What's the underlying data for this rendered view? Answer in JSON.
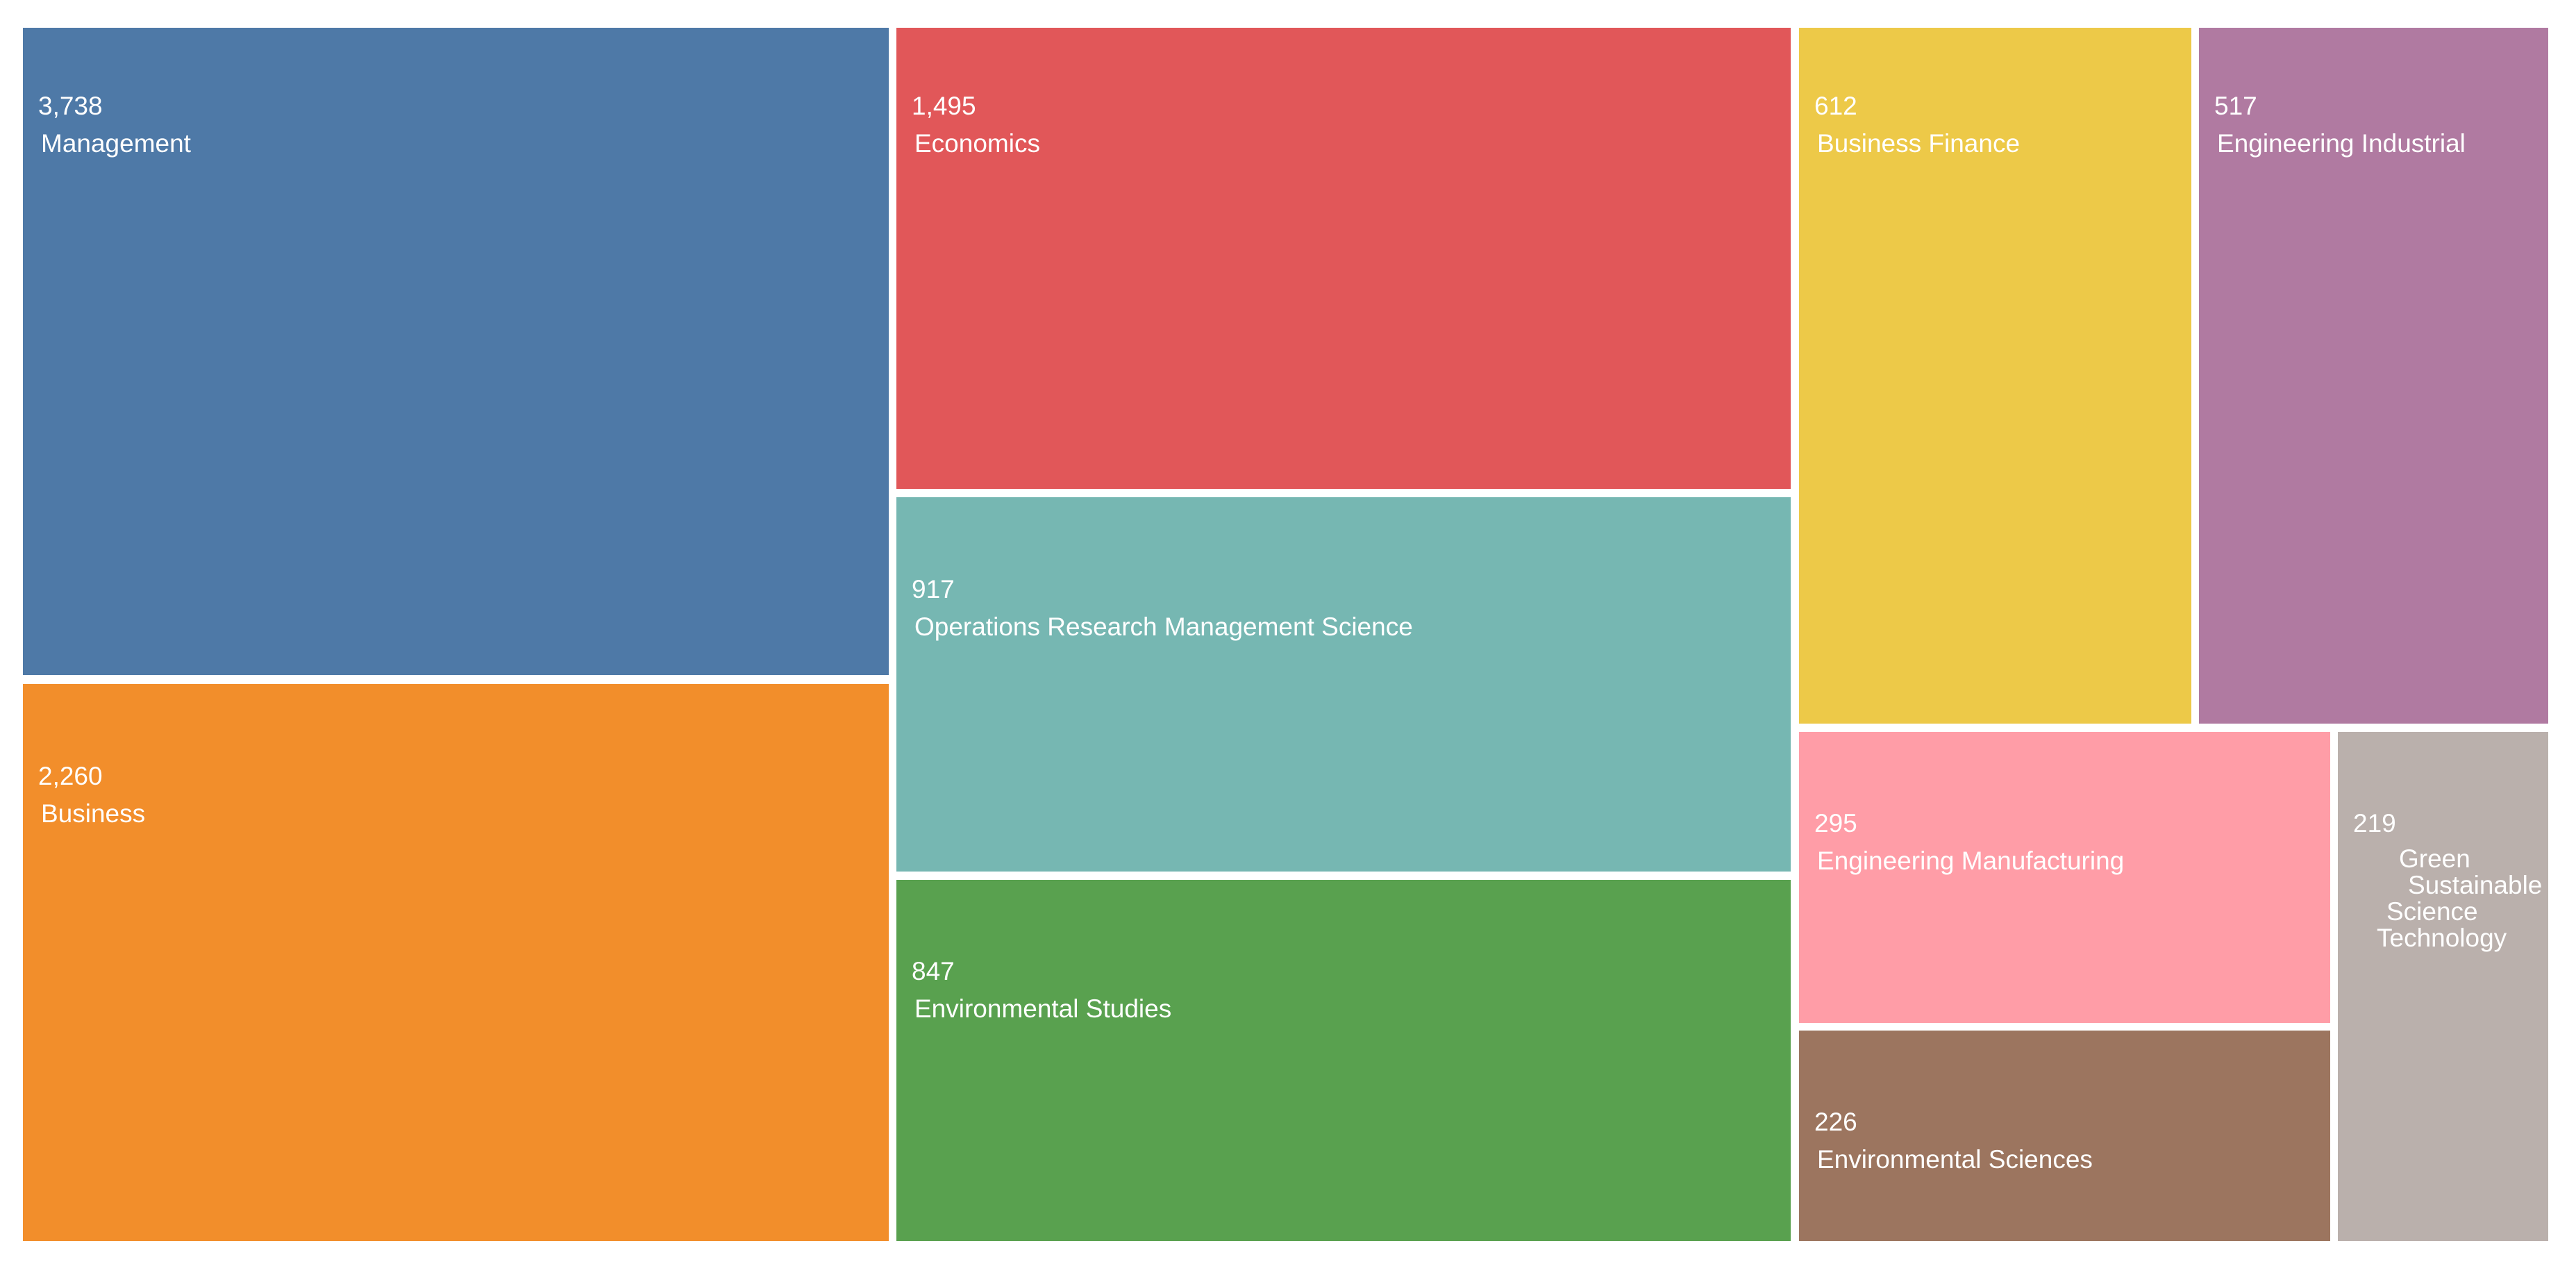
{
  "chart_data": {
    "type": "treemap",
    "series": [
      {
        "name": "Management",
        "value": 3738,
        "value_label": "3,738",
        "color": "#4e79a7"
      },
      {
        "name": "Business",
        "value": 2260,
        "value_label": "2,260",
        "color": "#f28e2b"
      },
      {
        "name": "Economics",
        "value": 1495,
        "value_label": "1,495",
        "color": "#e15759"
      },
      {
        "name": "Operations Research Management Science",
        "value": 917,
        "value_label": "917",
        "color": "#76b7b2"
      },
      {
        "name": "Environmental Studies",
        "value": 847,
        "value_label": "847",
        "color": "#59a14f"
      },
      {
        "name": "Business Finance",
        "value": 612,
        "value_label": "612",
        "color": "#edc948"
      },
      {
        "name": "Engineering Industrial",
        "value": 517,
        "value_label": "517",
        "color": "#b07aa1"
      },
      {
        "name": "Engineering Manufacturing",
        "value": 295,
        "value_label": "295",
        "color": "#ff9da7"
      },
      {
        "name": "Environmental Sciences",
        "value": 226,
        "value_label": "226",
        "color": "#9c755f"
      },
      {
        "name": "Green Sustainable Science Technology",
        "value": 219,
        "value_label": "219",
        "color": "#bab0ac",
        "label_lines": [
          "Green",
          "Sustainable",
          "Science",
          "Technology"
        ]
      }
    ]
  }
}
